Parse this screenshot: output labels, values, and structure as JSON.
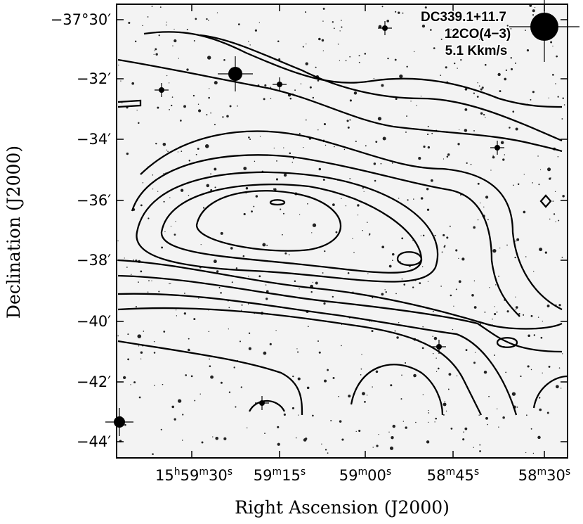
{
  "figure": {
    "source_label": [
      "DC339.1+11.7",
      "12CO(4−3)",
      "5.1 Kkm/s"
    ],
    "x_axis_label": "Right Ascension (J2000)",
    "y_axis_label": "Declination (J2000)",
    "x_tick_labels": [
      "15h59m30s",
      "59m15s",
      "59m00s",
      "58m45s",
      "58m30s"
    ],
    "y_tick_labels": [
      "−37°30′",
      "−32′",
      "−34′",
      "−36′",
      "−38′",
      "−40′",
      "−42′",
      "−44′"
    ]
  }
}
